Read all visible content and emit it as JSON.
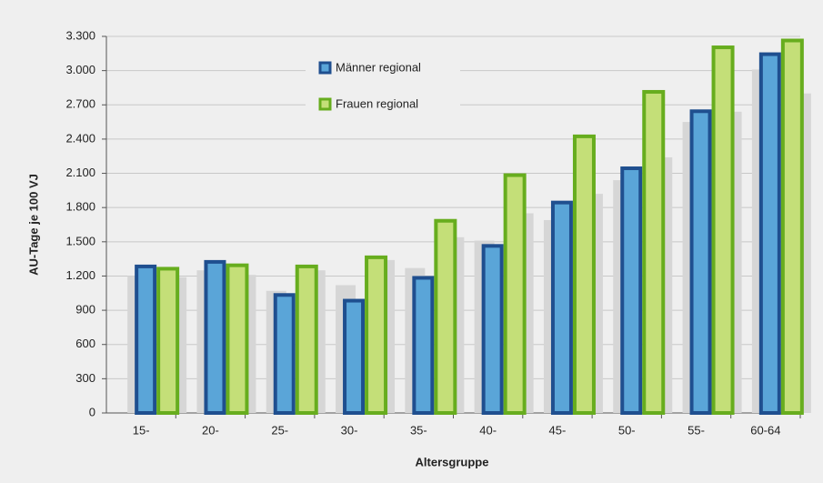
{
  "chart_data": {
    "type": "bar",
    "x_label": "Altersgruppe",
    "y_label": "AU-Tage je 100 VJ",
    "categories": [
      "15-",
      "20-",
      "25-",
      "30-",
      "35-",
      "40-",
      "45-",
      "50-",
      "55-",
      "60-64"
    ],
    "series": [
      {
        "name": "Männer regional",
        "color": "#1f4f8f",
        "fill": "#5aa5d8",
        "values": [
          1300,
          1340,
          1050,
          1000,
          1200,
          1480,
          1860,
          2160,
          2660,
          3160
        ]
      },
      {
        "name": "Frauen regional",
        "color": "#67ad1e",
        "fill": "#c4df78",
        "values": [
          1280,
          1310,
          1300,
          1380,
          1700,
          2100,
          2440,
          2830,
          3220,
          3280
        ]
      },
      {
        "color": "#d6d6d6",
        "values": [
          1200,
          1250,
          1070,
          1120,
          1270,
          1510,
          1690,
          2040,
          2550,
          3010
        ]
      },
      {
        "color": "#d6d6d6",
        "values": [
          1190,
          1210,
          1250,
          1340,
          1540,
          1750,
          1920,
          2240,
          2640,
          2800
        ]
      }
    ],
    "ylim": [
      0,
      3300
    ],
    "yticks": [
      0,
      300,
      600,
      900,
      {
        "value": 1200,
        "label": "1.200"
      },
      {
        "value": 1500,
        "label": "1.500"
      },
      {
        "value": 1800,
        "label": "1.800"
      },
      {
        "value": 2100,
        "label": "2.100"
      },
      {
        "value": 2400,
        "label": "2.400"
      },
      {
        "value": 2700,
        "label": "2.700"
      },
      {
        "value": 3000,
        "label": "3.000"
      },
      {
        "value": 3300,
        "label": "3.300"
      }
    ],
    "grid": true
  }
}
